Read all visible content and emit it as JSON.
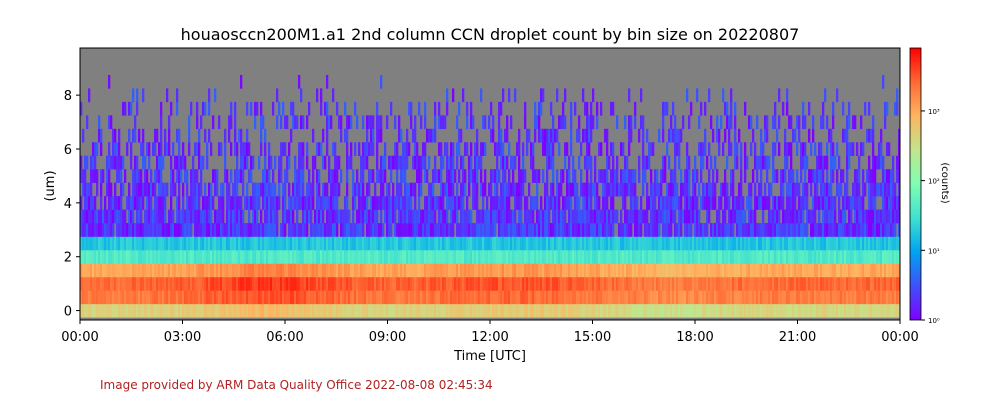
{
  "chart_data": {
    "type": "heatmap",
    "title": "houaosccn200M1.a1 2nd column CCN droplet count by bin size on 20220807",
    "xlabel": "Time [UTC]",
    "ylabel": "(um)",
    "x_ticks": [
      "00:00",
      "03:00",
      "06:00",
      "09:00",
      "12:00",
      "15:00",
      "18:00",
      "21:00",
      "00:00"
    ],
    "x_range_hours": [
      0,
      24
    ],
    "y_ticks": [
      "0",
      "2",
      "4",
      "6",
      "8"
    ],
    "y_tick_values": [
      0,
      2,
      4,
      6,
      8
    ],
    "ylim": [
      -0.35,
      9.75
    ],
    "missing_color": "#808080",
    "bin_centers_um": [
      0.0,
      0.5,
      1.0,
      1.5,
      2.0,
      2.5,
      3.0,
      3.5,
      4.0,
      4.5,
      5.0,
      5.5,
      6.0,
      6.5,
      7.0,
      7.5,
      8.0,
      8.5,
      9.0,
      9.5
    ],
    "typical_log10_counts_by_bin": [
      2.6,
      3.3,
      3.4,
      3.0,
      1.6,
      1.25,
      0.8,
      0.5,
      0.35,
      0.3,
      0.25,
      0.2,
      0.15,
      0.1,
      0.05,
      0.05,
      0.0,
      0.0,
      0.0,
      0.0
    ],
    "colorbar": {
      "label": "(counts)",
      "scale": "log",
      "range": [
        1,
        8000
      ],
      "tick_labels": [
        "10⁰",
        "10¹",
        "10²",
        "10³"
      ],
      "tick_values": [
        1,
        10,
        100,
        1000
      ]
    }
  },
  "footer": "Image provided by ARM Data Quality Office 2022-08-08 02:45:34"
}
